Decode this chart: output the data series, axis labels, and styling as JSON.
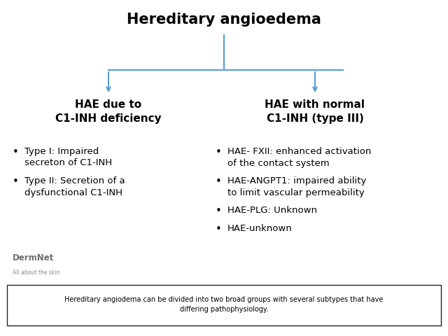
{
  "title": "Hereditary angioedema",
  "title_fontsize": 15,
  "title_fontweight": "bold",
  "background_color": "#ffffff",
  "arrow_color": "#5b9bd5",
  "left_header": "HAE due to\nC1-INH deficiency",
  "right_header": "HAE with normal\nC1-INH (type III)",
  "header_fontsize": 11,
  "header_fontweight": "bold",
  "left_bullets": [
    "Type I: Impaired\nsecreton of C1-INH",
    "Type II: Secretion of a\ndysfunctional C1-INH"
  ],
  "right_bullets": [
    "HAE- FXII: enhanced activation\nof the contact system",
    "HAE-ANGPT1: impaired ability\nto limit vascular permeability",
    "HAE-PLG: Unknown",
    "HAE-unknown"
  ],
  "bullet_fontsize": 9.5,
  "caption": "Hereditary angiodema can be divided into two broad groups with several subtypes that have\ndiffering pathophysiology.",
  "caption_fontsize": 7.0,
  "watermark_text": "DermNet",
  "watermark_subtext": "All about the skin",
  "watermark_color": "#555555"
}
